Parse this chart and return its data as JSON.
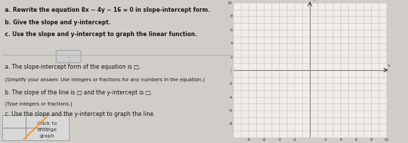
{
  "title_lines": [
    "a. Rewrite the equation 8x − 4y − 16 = 0 in slope-intercept form.",
    "b. Give the slope and y-intercept.",
    "c. Use the slope and y-intercept to graph the linear function."
  ],
  "separator_text": "...",
  "part_a_text": "a. The slope-intercept form of the equation is □.",
  "part_a_sub": "(Simplify your answer. Use integers or fractions for any numbers in the equation.)",
  "part_b_text": "b. The slope of the line is □ and the y-intercept is □.",
  "part_b_sub": "(Type integers or fractions.)",
  "part_c_text": "c. Use the slope and the y-intercept to graph the line.",
  "thumbnail_text": [
    "Click to",
    "enlarge",
    "graph"
  ],
  "text_color": "#1a1a1a",
  "grid_color": "#bbbbbb",
  "axis_color": "#333333",
  "left_bg": "#dbd7d2",
  "right_bg": "#f0ede8",
  "xlim": [
    -10,
    10
  ],
  "ylim": [
    -10,
    10
  ],
  "xticks": [
    -8,
    -6,
    -4,
    -2,
    2,
    4,
    6,
    8,
    10
  ],
  "yticks": [
    -8,
    -6,
    -4,
    -2,
    2,
    4,
    6,
    8,
    10
  ],
  "slope": 2,
  "intercept": -4,
  "thumbnail_line_color": "#ff8800",
  "thumbnail_bg": "#d8d8d8",
  "sep_line_color": "#aaaaaa",
  "btn_color": "#cccccc"
}
